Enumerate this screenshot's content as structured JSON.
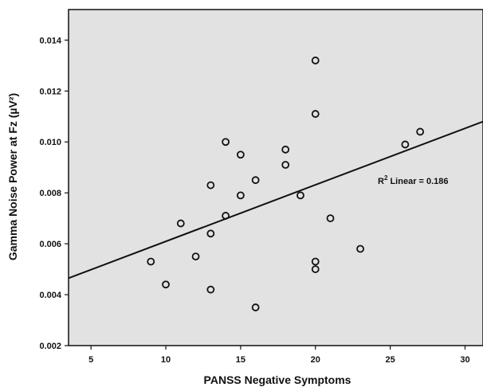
{
  "chart_data": {
    "type": "scatter",
    "title": "",
    "xlabel": "PANSS Negative Symptoms",
    "ylabel": "Gamma Noise Power at Fz (µV²)",
    "xlim": [
      3.5,
      31.2
    ],
    "ylim": [
      0.002,
      0.0152
    ],
    "x_ticks": [
      5,
      10,
      15,
      20,
      25,
      30
    ],
    "y_ticks": [
      0.002,
      0.004,
      0.006,
      0.008,
      0.01,
      0.012,
      0.014
    ],
    "x_tick_labels": [
      "5",
      "10",
      "15",
      "20",
      "25",
      "30"
    ],
    "y_tick_labels": [
      "0.002",
      "0.004",
      "0.006",
      "0.008",
      "0.010",
      "0.012",
      "0.014"
    ],
    "grid": false,
    "legend": "none",
    "background_color": "#e2e2e2",
    "marker": "open-circle",
    "points": [
      {
        "x": 9,
        "y": 0.0053
      },
      {
        "x": 10,
        "y": 0.0044
      },
      {
        "x": 11,
        "y": 0.0068
      },
      {
        "x": 12,
        "y": 0.0055
      },
      {
        "x": 13,
        "y": 0.0083
      },
      {
        "x": 13,
        "y": 0.0064
      },
      {
        "x": 13,
        "y": 0.0042
      },
      {
        "x": 14,
        "y": 0.01
      },
      {
        "x": 14,
        "y": 0.0071
      },
      {
        "x": 15,
        "y": 0.0095
      },
      {
        "x": 15,
        "y": 0.0079
      },
      {
        "x": 16,
        "y": 0.0085
      },
      {
        "x": 16,
        "y": 0.0035
      },
      {
        "x": 18,
        "y": 0.0097
      },
      {
        "x": 18,
        "y": 0.0091
      },
      {
        "x": 19,
        "y": 0.0079
      },
      {
        "x": 20,
        "y": 0.0132
      },
      {
        "x": 20,
        "y": 0.0111
      },
      {
        "x": 20,
        "y": 0.0053
      },
      {
        "x": 20,
        "y": 0.005
      },
      {
        "x": 21,
        "y": 0.007
      },
      {
        "x": 23,
        "y": 0.0058
      },
      {
        "x": 26,
        "y": 0.0099
      },
      {
        "x": 27,
        "y": 0.0104
      }
    ],
    "fit_line": {
      "x": [
        3.5,
        31.2
      ],
      "y": [
        0.00465,
        0.0108
      ]
    },
    "annotation": {
      "prefix": "R",
      "superscript": "2",
      "text": " Linear = 0.186"
    }
  }
}
